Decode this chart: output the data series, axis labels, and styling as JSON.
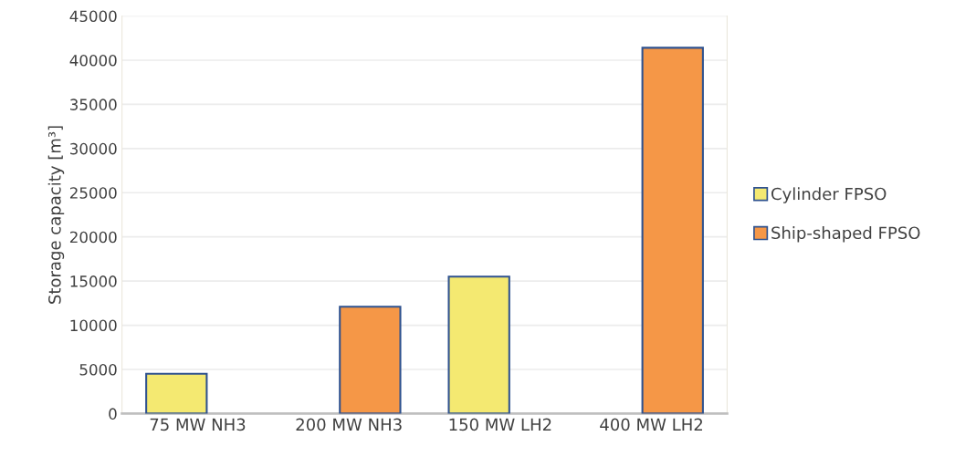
{
  "chart_data": {
    "type": "bar",
    "ylabel": "Storage capacity [m³]",
    "categories": [
      "75 MW NH3",
      "200 MW NH3",
      "150 MW LH2",
      "400 MW LH2"
    ],
    "series": [
      {
        "name": "Cylinder FPSO",
        "color": "#f4e971",
        "values": [
          4500,
          null,
          15500,
          null
        ]
      },
      {
        "name": "Ship-shaped FPSO",
        "color": "#f59747",
        "values": [
          null,
          12100,
          null,
          41400
        ]
      }
    ],
    "ylim": [
      0,
      45000
    ],
    "yticks": [
      0,
      5000,
      10000,
      15000,
      20000,
      25000,
      30000,
      35000,
      40000,
      45000
    ],
    "grid": "y",
    "legend": "right"
  }
}
